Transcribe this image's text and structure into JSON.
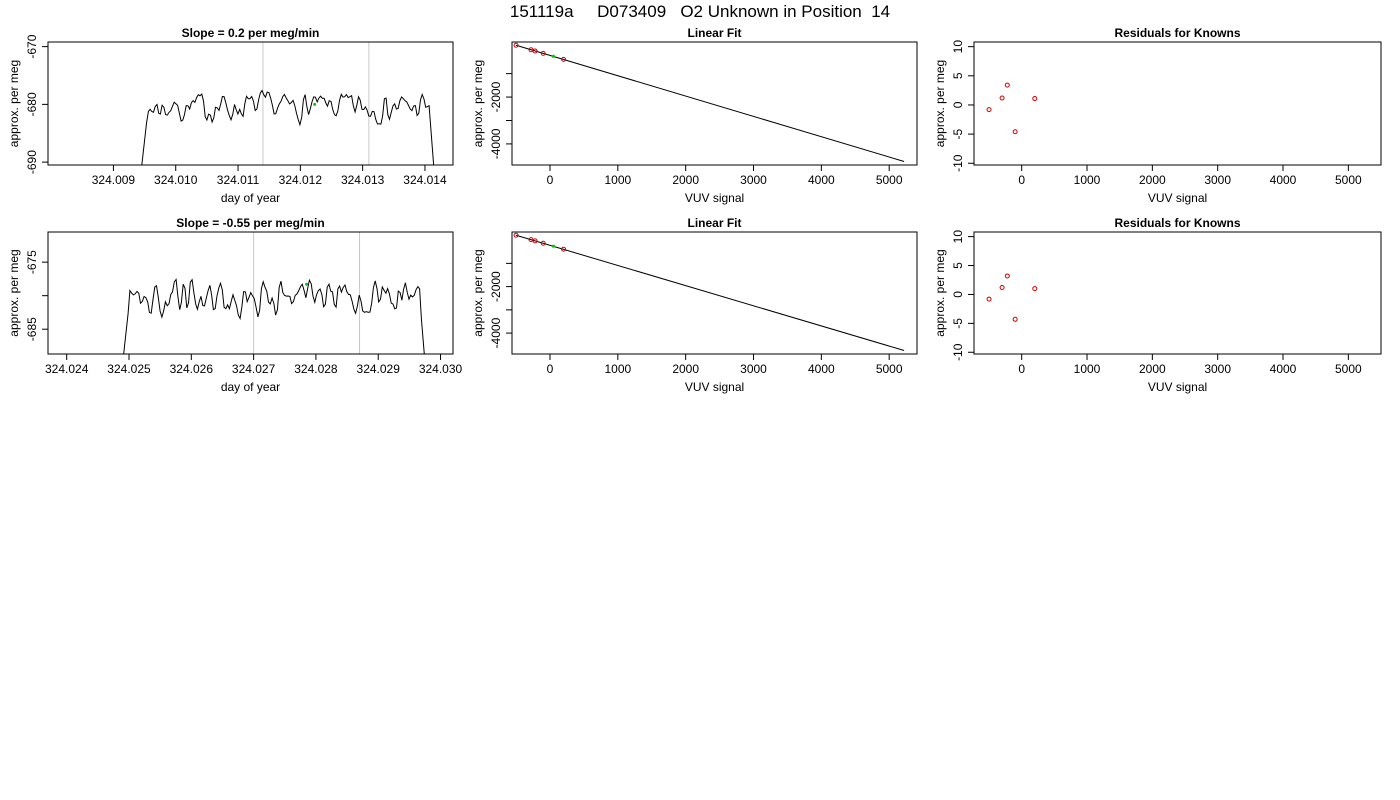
{
  "page": {
    "title": "151119a     D073409   O2 Unknown in Position  14"
  },
  "chart_data": [
    {
      "id": "trace1",
      "type": "line",
      "title": "Slope =  0.2  per meg/min",
      "xlabel": "day of year",
      "ylabel": "approx. per meg",
      "xlim": [
        324.00795,
        324.01445
      ],
      "ylim": [
        -690.5,
        -669.2
      ],
      "xticks": [
        324.009,
        324.01,
        324.011,
        324.012,
        324.013,
        324.014
      ],
      "xtick_labels": [
        "324.009",
        "324.010",
        "324.011",
        "324.012",
        "324.013",
        "324.014"
      ],
      "yticks": [
        -670,
        -680,
        -690
      ],
      "ytick_labels": [
        "-670",
        "-680",
        "-690"
      ],
      "vlines": [
        324.0114,
        324.0131
      ],
      "x_start": 324.00945,
      "x_end": 324.01415,
      "trace_mean": -680.5,
      "noise_amp": 1.6,
      "start_value": -691,
      "end_value": -692,
      "highlight_point": {
        "x": 324.01223,
        "y": -680
      },
      "line_color": "#000000",
      "vline_color": "#c8c8c8",
      "highlight_color": "#00c800",
      "seed": 7
    },
    {
      "id": "fit1",
      "type": "scatter",
      "title": "Linear Fit",
      "xlabel": "VUV signal",
      "ylabel": "approx. per meg",
      "xlim": [
        -560,
        5410
      ],
      "ylim": [
        -4900,
        350
      ],
      "xticks": [
        0,
        1000,
        2000,
        3000,
        4000,
        5000
      ],
      "xtick_labels": [
        "0",
        "1000",
        "2000",
        "3000",
        "4000",
        "5000"
      ],
      "yticks": [
        -2000,
        -4000
      ],
      "ytick_labels": [
        "-2000",
        "-4000"
      ],
      "yticks_minor": [
        -1000,
        -3000
      ],
      "fit_line": {
        "x": [
          -500,
          5220
        ],
        "y": [
          210,
          -4750
        ]
      },
      "points": {
        "x": [
          -500,
          -280,
          -220,
          -100,
          200
        ],
        "y": [
          211,
          20,
          -32,
          -135,
          -390
        ]
      },
      "unknown_point": {
        "x": 50,
        "y": -260
      },
      "point_color": "#d00000",
      "unknown_color": "#00c800"
    },
    {
      "id": "resid1",
      "type": "scatter",
      "title": "Residuals for Knowns",
      "xlabel": "VUV signal",
      "ylabel": "approx. per meg",
      "xlim": [
        -730,
        5500
      ],
      "ylim": [
        -10.3,
        10.8
      ],
      "xticks": [
        0,
        1000,
        2000,
        3000,
        4000,
        5000
      ],
      "xtick_labels": [
        "0",
        "1000",
        "2000",
        "3000",
        "4000",
        "5000"
      ],
      "yticks": [
        10,
        5,
        0,
        -5,
        -10
      ],
      "ytick_labels": [
        "10",
        "5",
        "0",
        "-5",
        "-10"
      ],
      "points": {
        "x": [
          -500,
          -300,
          -220,
          -100,
          200
        ],
        "y": [
          -0.8,
          1.2,
          3.4,
          -4.6,
          1.1
        ]
      },
      "point_color": "#d00000"
    },
    {
      "id": "trace2",
      "type": "line",
      "title": "Slope =  -0.55  per meg/min",
      "xlabel": "day of year",
      "ylabel": "approx. per meg",
      "xlim": [
        324.0237,
        324.0302
      ],
      "ylim": [
        -688.7,
        -670.5
      ],
      "xticks": [
        324.024,
        324.025,
        324.026,
        324.027,
        324.028,
        324.029,
        324.03
      ],
      "xtick_labels": [
        "324.024",
        "324.025",
        "324.026",
        "324.027",
        "324.028",
        "324.029",
        "324.030"
      ],
      "yticks": [
        -675,
        -685
      ],
      "ytick_labels": [
        "-675",
        "-685"
      ],
      "yticks_minor": [
        -680
      ],
      "vlines": [
        324.027,
        324.0287
      ],
      "x_start": 324.0249,
      "x_end": 324.02975,
      "trace_mean": -680.2,
      "noise_amp": 1.8,
      "start_value": -690,
      "end_value": -690,
      "highlight_point": {
        "x": 324.02785,
        "y": -678.3
      },
      "line_color": "#000000",
      "vline_color": "#c8c8c8",
      "highlight_color": "#00c800",
      "seed": 19
    },
    {
      "id": "fit2",
      "type": "scatter",
      "title": "Linear Fit",
      "xlabel": "VUV signal",
      "ylabel": "approx. per meg",
      "xlim": [
        -560,
        5410
      ],
      "ylim": [
        -4900,
        350
      ],
      "xticks": [
        0,
        1000,
        2000,
        3000,
        4000,
        5000
      ],
      "xtick_labels": [
        "0",
        "1000",
        "2000",
        "3000",
        "4000",
        "5000"
      ],
      "yticks": [
        -2000,
        -4000
      ],
      "ytick_labels": [
        "-2000",
        "-4000"
      ],
      "yticks_minor": [
        -1000,
        -3000
      ],
      "fit_line": {
        "x": [
          -500,
          5220
        ],
        "y": [
          210,
          -4750
        ]
      },
      "points": {
        "x": [
          -500,
          -280,
          -220,
          -100,
          200
        ],
        "y": [
          211,
          20,
          -32,
          -135,
          -390
        ]
      },
      "unknown_point": {
        "x": 50,
        "y": -260
      },
      "point_color": "#d00000",
      "unknown_color": "#00c800"
    },
    {
      "id": "resid2",
      "type": "scatter",
      "title": "Residuals for Knowns",
      "xlabel": "VUV signal",
      "ylabel": "approx. per meg",
      "xlim": [
        -730,
        5500
      ],
      "ylim": [
        -10.3,
        10.8
      ],
      "xticks": [
        0,
        1000,
        2000,
        3000,
        4000,
        5000
      ],
      "xtick_labels": [
        "0",
        "1000",
        "2000",
        "3000",
        "4000",
        "5000"
      ],
      "yticks": [
        10,
        5,
        0,
        -5,
        -10
      ],
      "ytick_labels": [
        "10",
        "5",
        "0",
        "-5",
        "-10"
      ],
      "points": {
        "x": [
          -500,
          -300,
          -220,
          -100,
          200
        ],
        "y": [
          -0.8,
          1.2,
          3.2,
          -4.3,
          1.0
        ]
      },
      "point_color": "#d00000"
    }
  ]
}
